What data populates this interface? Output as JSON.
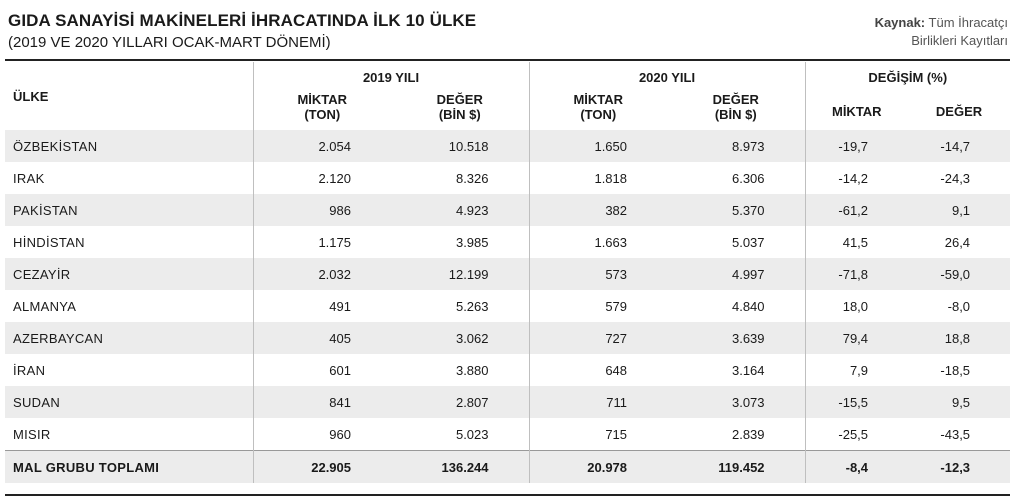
{
  "header": {
    "title": "GIDA SANAYİSİ MAKİNELERİ İHRACATINDA İLK 10 ÜLKE",
    "subtitle": "(2019 VE 2020 YILLARI OCAK-MART DÖNEMİ)",
    "source_label": "Kaynak:",
    "source_line1": "Tüm İhracatçı",
    "source_line2": "Birlikleri Kayıtları"
  },
  "table": {
    "country_header": "ÜLKE",
    "group_2019": "2019 YILI",
    "group_2020": "2020 YILI",
    "group_change": "DEĞİŞİM (%)",
    "qty_line1": "MİKTAR",
    "qty_line2": "(TON)",
    "val_line1": "DEĞER",
    "val_line2": "(BİN $)",
    "change_qty": "MİKTAR",
    "change_val": "DEĞER",
    "rows": [
      {
        "country": "ÖZBEKİSTAN",
        "q2019": "2.054",
        "v2019": "10.518",
        "q2020": "1.650",
        "v2020": "8.973",
        "dq": "-19,7",
        "dv": "-14,7"
      },
      {
        "country": "IRAK",
        "q2019": "2.120",
        "v2019": "8.326",
        "q2020": "1.818",
        "v2020": "6.306",
        "dq": "-14,2",
        "dv": "-24,3"
      },
      {
        "country": "PAKİSTAN",
        "q2019": "986",
        "v2019": "4.923",
        "q2020": "382",
        "v2020": "5.370",
        "dq": "-61,2",
        "dv": "9,1"
      },
      {
        "country": "HİNDİSTAN",
        "q2019": "1.175",
        "v2019": "3.985",
        "q2020": "1.663",
        "v2020": "5.037",
        "dq": "41,5",
        "dv": "26,4"
      },
      {
        "country": "CEZAYİR",
        "q2019": "2.032",
        "v2019": "12.199",
        "q2020": "573",
        "v2020": "4.997",
        "dq": "-71,8",
        "dv": "-59,0"
      },
      {
        "country": "ALMANYA",
        "q2019": "491",
        "v2019": "5.263",
        "q2020": "579",
        "v2020": "4.840",
        "dq": "18,0",
        "dv": "-8,0"
      },
      {
        "country": "AZERBAYCAN",
        "q2019": "405",
        "v2019": "3.062",
        "q2020": "727",
        "v2020": "3.639",
        "dq": "79,4",
        "dv": "18,8"
      },
      {
        "country": "İRAN",
        "q2019": "601",
        "v2019": "3.880",
        "q2020": "648",
        "v2020": "3.164",
        "dq": "7,9",
        "dv": "-18,5"
      },
      {
        "country": "SUDAN",
        "q2019": "841",
        "v2019": "2.807",
        "q2020": "711",
        "v2020": "3.073",
        "dq": "-15,5",
        "dv": "9,5"
      },
      {
        "country": "MISIR",
        "q2019": "960",
        "v2019": "5.023",
        "q2020": "715",
        "v2020": "2.839",
        "dq": "-25,5",
        "dv": "-43,5"
      }
    ],
    "total": {
      "country": "MAL GRUBU TOPLAMI",
      "q2019": "22.905",
      "v2019": "136.244",
      "q2020": "20.978",
      "v2020": "119.452",
      "dq": "-8,4",
      "dv": "-12,3"
    }
  }
}
